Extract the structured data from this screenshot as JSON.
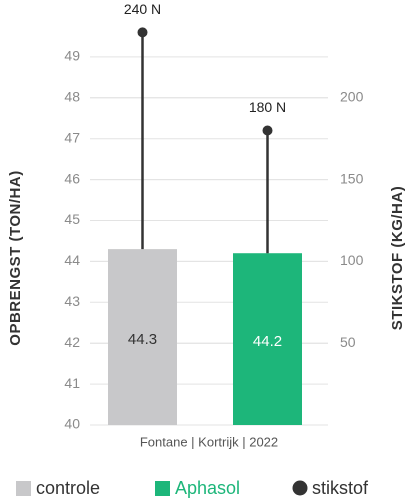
{
  "chart_data": {
    "type": "bar",
    "subtitle": "Fontane | Kortrijk | 2022",
    "ylabel": "OPBRENGST (TON/HA)",
    "y2label": "STIKSTOF (KG/HA)",
    "bars": {
      "names": [
        "controle",
        "Aphasol"
      ],
      "colors": [
        "#c8c8ca",
        "#1db67a"
      ],
      "values": [
        44.3,
        44.2
      ]
    },
    "series": [
      {
        "name": "stikstof",
        "color": "#333333",
        "axis": "y2",
        "values": [
          240,
          180
        ],
        "value_labels": [
          "240 N",
          "180 N"
        ]
      }
    ],
    "ylim": [
      40,
      50
    ],
    "yticks": [
      40,
      41,
      42,
      43,
      44,
      45,
      46,
      47,
      48,
      49
    ],
    "y2lim": [
      0,
      250
    ],
    "y2ticks": [
      50,
      100,
      150,
      200
    ],
    "grid": true,
    "legend": "bottom"
  }
}
